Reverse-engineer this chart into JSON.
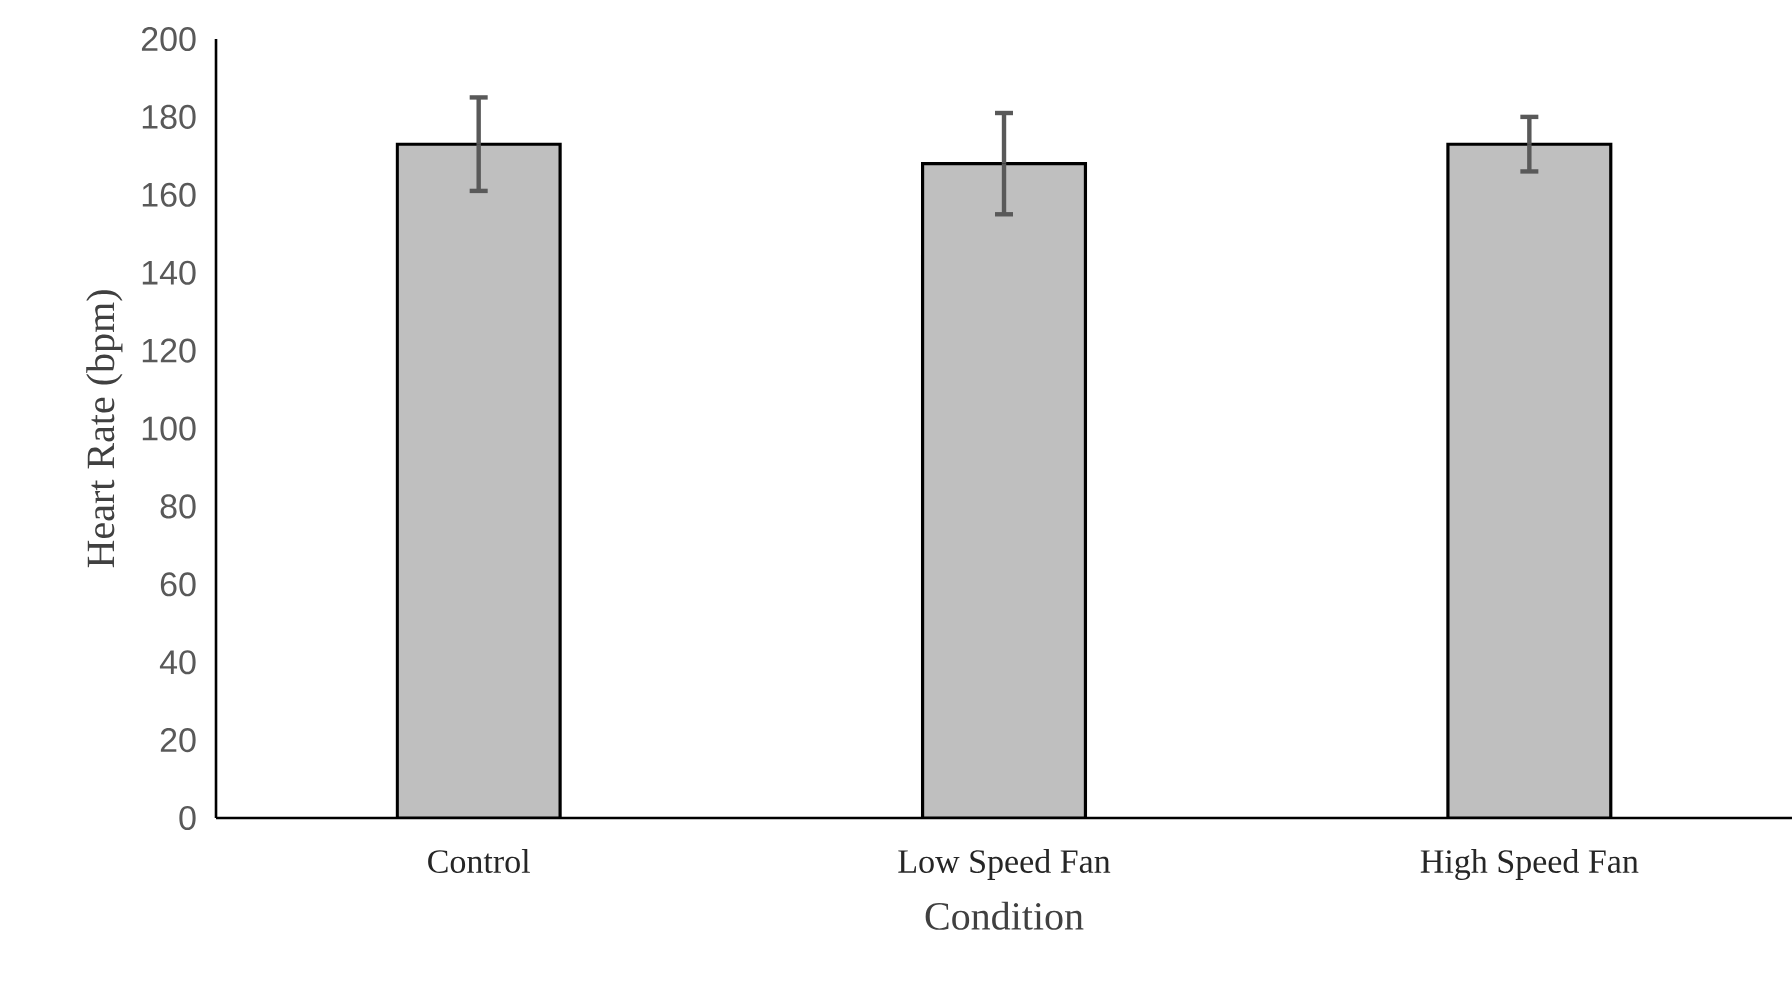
{
  "chart_data": {
    "type": "bar",
    "xlabel": "Condition",
    "ylabel": "Heart Rate (bpm)",
    "categories": [
      "Control",
      "Low Speed Fan",
      "High Speed Fan"
    ],
    "values": [
      173,
      168,
      173
    ],
    "errors": [
      12,
      13,
      7
    ],
    "color": "#bfbfbf",
    "ylim": [
      0,
      200
    ],
    "yticks": [
      0,
      20,
      40,
      60,
      80,
      100,
      120,
      140,
      160,
      180,
      200
    ],
    "grid": false
  }
}
